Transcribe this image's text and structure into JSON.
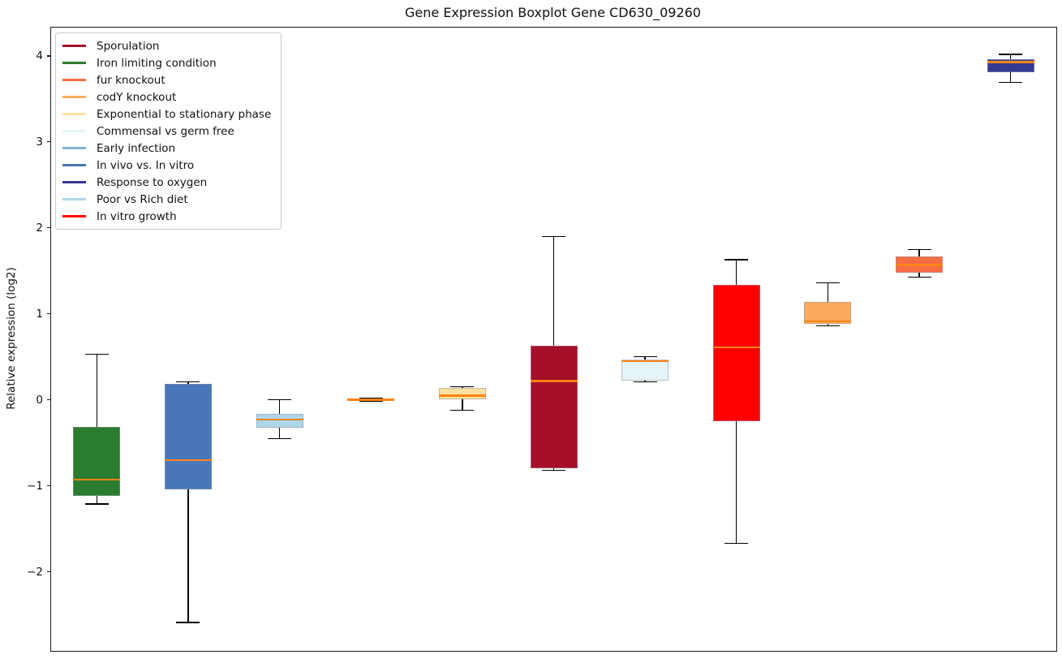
{
  "chart_data": {
    "type": "boxplot",
    "title": "Gene Expression Boxplot Gene CD630_09260",
    "ylabel": "Relative expression (log2)",
    "xlabel": "",
    "ylim": [
      -2.92,
      4.33
    ],
    "xlim": [
      0.5,
      11.5
    ],
    "grid": false,
    "x_tick_labels": [],
    "yticks": [
      {
        "value": 4,
        "label": "4"
      },
      {
        "value": 3,
        "label": "3"
      },
      {
        "value": 2,
        "label": "2"
      },
      {
        "value": 1,
        "label": "1"
      },
      {
        "value": 0,
        "label": "0"
      },
      {
        "value": -1,
        "label": "−1"
      },
      {
        "value": -2,
        "label": "−2"
      }
    ],
    "median_color": "#ff8414",
    "whisker_color": "#000000",
    "legend_position": "upper left",
    "legend": [
      {
        "label": "Sporulation",
        "color": "#a50f28"
      },
      {
        "label": "Iron limiting condition",
        "color": "#2a7c2e"
      },
      {
        "label": "fur knockout",
        "color": "#f96d45"
      },
      {
        "label": "codY knockout",
        "color": "#fbaa60"
      },
      {
        "label": "Exponential to stationary phase",
        "color": "#fee1a0"
      },
      {
        "label": "Commensal vs germ free",
        "color": "#e4f4f9"
      },
      {
        "label": "Early infection",
        "color": "#7fb4d8"
      },
      {
        "label": "In vivo vs. In vitro",
        "color": "#4876b8"
      },
      {
        "label": "Response to oxygen",
        "color": "#343a94"
      },
      {
        "label": "Poor vs Rich diet",
        "color": "#aed6ea"
      },
      {
        "label": "In vitro growth",
        "color": "#ff0000"
      }
    ],
    "series": [
      {
        "label": "Iron limiting condition",
        "color": "#2a7c2e",
        "whislo": -1.21,
        "q1": -1.12,
        "med": -0.93,
        "q3": -0.31,
        "whishi": 0.53
      },
      {
        "label": "In vivo vs. In vitro",
        "color": "#4876b8",
        "whislo": -2.59,
        "q1": -1.04,
        "med": -0.7,
        "q3": 0.19,
        "whishi": 0.21
      },
      {
        "label": "Poor vs Rich diet",
        "color": "#aed6ea",
        "whislo": -0.45,
        "q1": -0.32,
        "med": -0.23,
        "q3": -0.16,
        "whishi": 0.0
      },
      {
        "label": "Early infection",
        "color": "#7fb4d8",
        "whislo": -0.015,
        "q1": -0.008,
        "med": 0.0,
        "q3": 0.008,
        "whishi": 0.015
      },
      {
        "label": "Exponential to stationary phase",
        "color": "#fee1a0",
        "whislo": -0.12,
        "q1": 0.01,
        "med": 0.05,
        "q3": 0.14,
        "whishi": 0.15
      },
      {
        "label": "Sporulation",
        "color": "#a50f28",
        "whislo": -0.82,
        "q1": -0.8,
        "med": 0.22,
        "q3": 0.63,
        "whishi": 1.9
      },
      {
        "label": "Commensal vs germ free",
        "color": "#e4f4f9",
        "whislo": 0.21,
        "q1": 0.22,
        "med": 0.45,
        "q3": 0.47,
        "whishi": 0.5
      },
      {
        "label": "In vitro growth",
        "color": "#ff0000",
        "whislo": -1.67,
        "q1": -0.25,
        "med": 0.61,
        "q3": 1.34,
        "whishi": 1.63
      },
      {
        "label": "codY knockout",
        "color": "#fbaa60",
        "whislo": 0.86,
        "q1": 0.88,
        "med": 0.91,
        "q3": 1.14,
        "whishi": 1.36
      },
      {
        "label": "fur knockout",
        "color": "#f96d45",
        "whislo": 1.43,
        "q1": 1.48,
        "med": 1.57,
        "q3": 1.67,
        "whishi": 1.75
      },
      {
        "label": "Response to oxygen",
        "color": "#343a94",
        "whislo": 3.69,
        "q1": 3.81,
        "med": 3.93,
        "q3": 3.96,
        "whishi": 4.02
      }
    ]
  }
}
